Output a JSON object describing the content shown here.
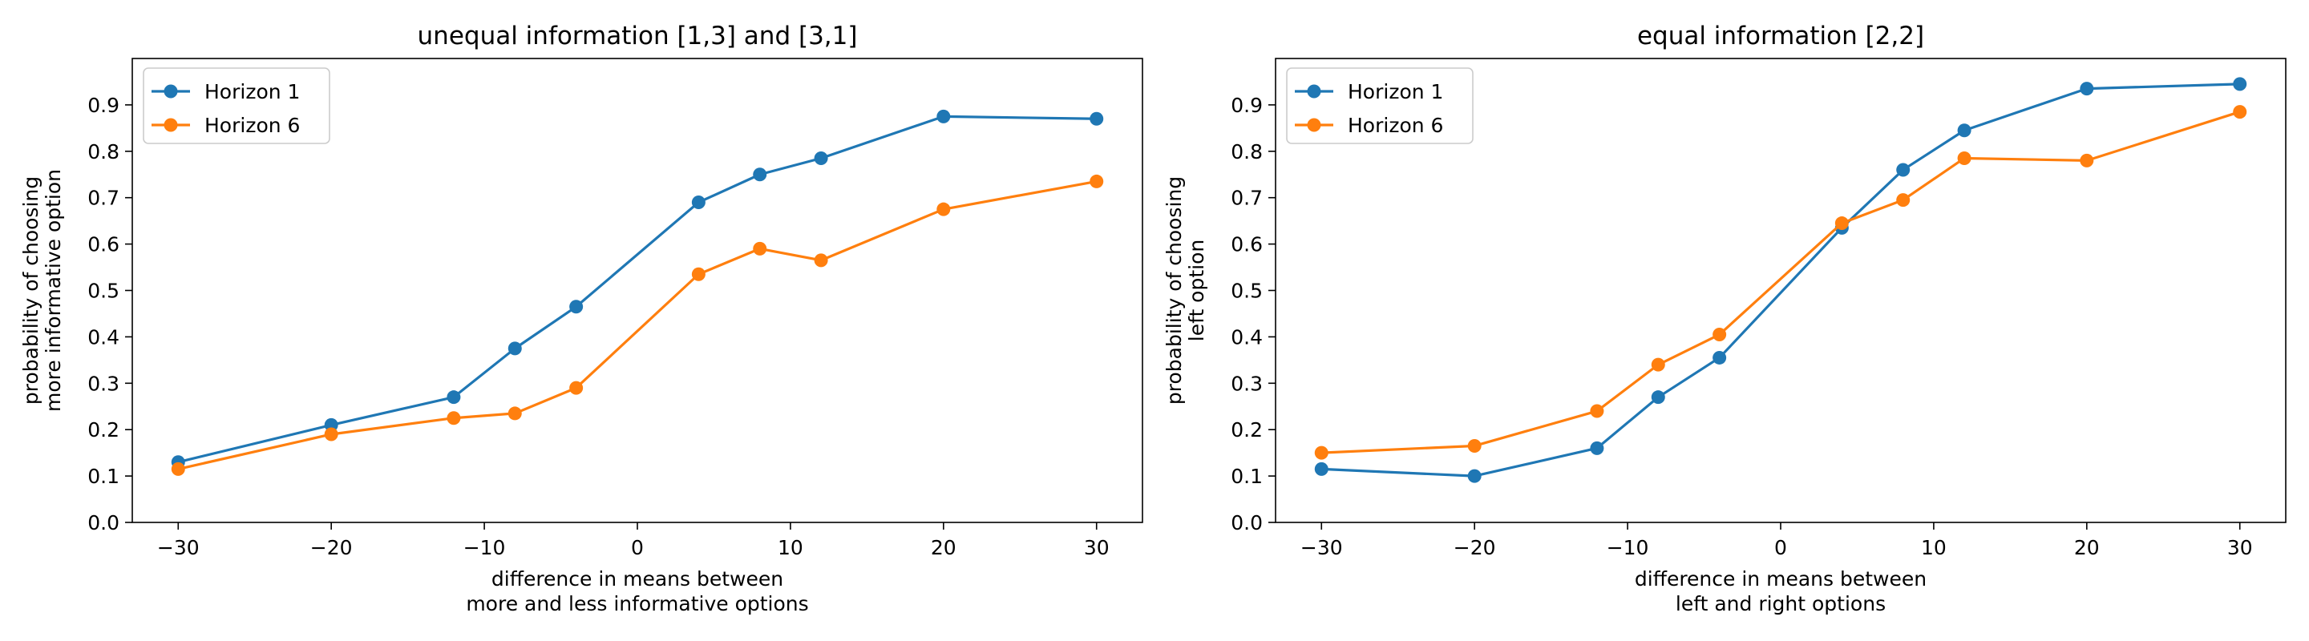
{
  "colors": {
    "horizon1": "#1f77b4",
    "horizon6": "#ff7f0e",
    "axes": "#000000",
    "legend_border": "#cccccc"
  },
  "chart_data": [
    {
      "type": "line",
      "title": "unequal information [1,3] and [3,1]",
      "xlabel_lines": [
        "difference in means between",
        "more and less informative options"
      ],
      "ylabel_lines": [
        "probability of choosing",
        "more informative option"
      ],
      "xlim": [
        -33,
        33
      ],
      "ylim": [
        0,
        1.0
      ],
      "xticks": [
        -30,
        -20,
        -10,
        0,
        10,
        20,
        30
      ],
      "xtick_labels": [
        "−30",
        "−20",
        "−10",
        "0",
        "10",
        "20",
        "30"
      ],
      "yticks": [
        0,
        0.1,
        0.2,
        0.3,
        0.4,
        0.5,
        0.6,
        0.7,
        0.8,
        0.9
      ],
      "ytick_labels": [
        "0.0",
        "0.1",
        "0.2",
        "0.3",
        "0.4",
        "0.5",
        "0.6",
        "0.7",
        "0.8",
        "0.9"
      ],
      "grid": false,
      "legend": "top-left",
      "x": [
        -30,
        -20,
        -12,
        -8,
        -4,
        4,
        8,
        12,
        20,
        30
      ],
      "series": [
        {
          "name": "Horizon 1",
          "color": "#1f77b4",
          "values": [
            0.13,
            0.21,
            0.27,
            0.375,
            0.465,
            0.69,
            0.75,
            0.785,
            0.875,
            0.87
          ]
        },
        {
          "name": "Horizon 6",
          "color": "#ff7f0e",
          "values": [
            0.115,
            0.19,
            0.225,
            0.235,
            0.29,
            0.535,
            0.59,
            0.565,
            0.675,
            0.735
          ]
        }
      ]
    },
    {
      "type": "line",
      "title": "equal information [2,2]",
      "xlabel_lines": [
        "difference in means between",
        "left and right options"
      ],
      "ylabel_lines": [
        "probability of choosing",
        "left option"
      ],
      "xlim": [
        -33,
        33
      ],
      "ylim": [
        0,
        1.0
      ],
      "xticks": [
        -30,
        -20,
        -10,
        0,
        10,
        20,
        30
      ],
      "xtick_labels": [
        "−30",
        "−20",
        "−10",
        "0",
        "10",
        "20",
        "30"
      ],
      "yticks": [
        0,
        0.1,
        0.2,
        0.3,
        0.4,
        0.5,
        0.6,
        0.7,
        0.8,
        0.9
      ],
      "ytick_labels": [
        "0.0",
        "0.1",
        "0.2",
        "0.3",
        "0.4",
        "0.5",
        "0.6",
        "0.7",
        "0.8",
        "0.9"
      ],
      "grid": false,
      "legend": "top-left",
      "x": [
        -30,
        -20,
        -12,
        -8,
        -4,
        4,
        8,
        12,
        20,
        30
      ],
      "series": [
        {
          "name": "Horizon 1",
          "color": "#1f77b4",
          "values": [
            0.115,
            0.1,
            0.16,
            0.27,
            0.355,
            0.635,
            0.76,
            0.845,
            0.935,
            0.945
          ]
        },
        {
          "name": "Horizon 6",
          "color": "#ff7f0e",
          "values": [
            0.15,
            0.165,
            0.24,
            0.34,
            0.405,
            0.645,
            0.695,
            0.785,
            0.78,
            0.885
          ]
        }
      ]
    }
  ]
}
